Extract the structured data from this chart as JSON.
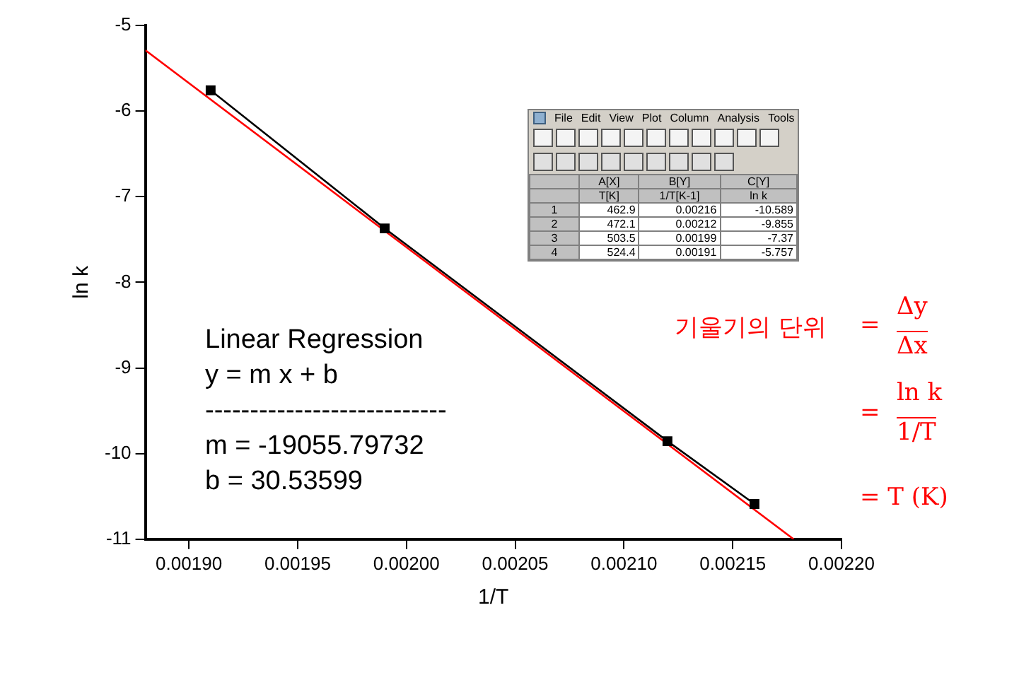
{
  "chart_data": {
    "type": "line",
    "xlabel": "1/T",
    "ylabel": "ln k",
    "xlim": [
      0.00188,
      0.0022
    ],
    "ylim": [
      -11,
      -5
    ],
    "xticks": [
      {
        "value": 0.0019,
        "label": "0.00190"
      },
      {
        "value": 0.00195,
        "label": "0.00195"
      },
      {
        "value": 0.002,
        "label": "0.00200"
      },
      {
        "value": 0.00205,
        "label": "0.00205"
      },
      {
        "value": 0.0021,
        "label": "0.00210"
      },
      {
        "value": 0.00215,
        "label": "0.00215"
      },
      {
        "value": 0.0022,
        "label": "0.00220"
      }
    ],
    "yticks": [
      -11,
      -10,
      -9,
      -8,
      -7,
      -6,
      -5
    ],
    "grid": false,
    "legend": false,
    "series": [
      {
        "color": "#000000",
        "marker": "square",
        "x": [
          0.00191,
          0.00199,
          0.00212,
          0.00216
        ],
        "values": [
          -5.757,
          -7.37,
          -9.855,
          -10.589
        ]
      },
      {
        "color": "#ff0000",
        "marker": "none",
        "x": [
          0.00188,
          0.002178
        ],
        "values": [
          -5.29,
          -11.0
        ]
      }
    ],
    "annotations": [
      "Linear Regression",
      "y  =  m x  +  b",
      "---------------------------",
      "m = -19055.79732",
      "b = 30.53599",
      "기울기의 단위",
      "=",
      "Δy",
      "Δx",
      "=",
      "ln k",
      "1/T",
      "=  T (K)",
      "File",
      "Edit",
      "View",
      "Plot",
      "Column",
      "Analysis",
      "Tools",
      "A[X]",
      "B[Y]",
      "C[Y]",
      "T[K]",
      "1/T[K-1]",
      "ln k",
      "1",
      "462.9",
      "0.00216",
      "-10.589",
      "2",
      "472.1",
      "0.00212",
      "-9.855",
      "3",
      "503.5",
      "0.00199",
      "-7.37",
      "4",
      "524.4",
      "0.00191",
      "-5.757"
    ]
  }
}
